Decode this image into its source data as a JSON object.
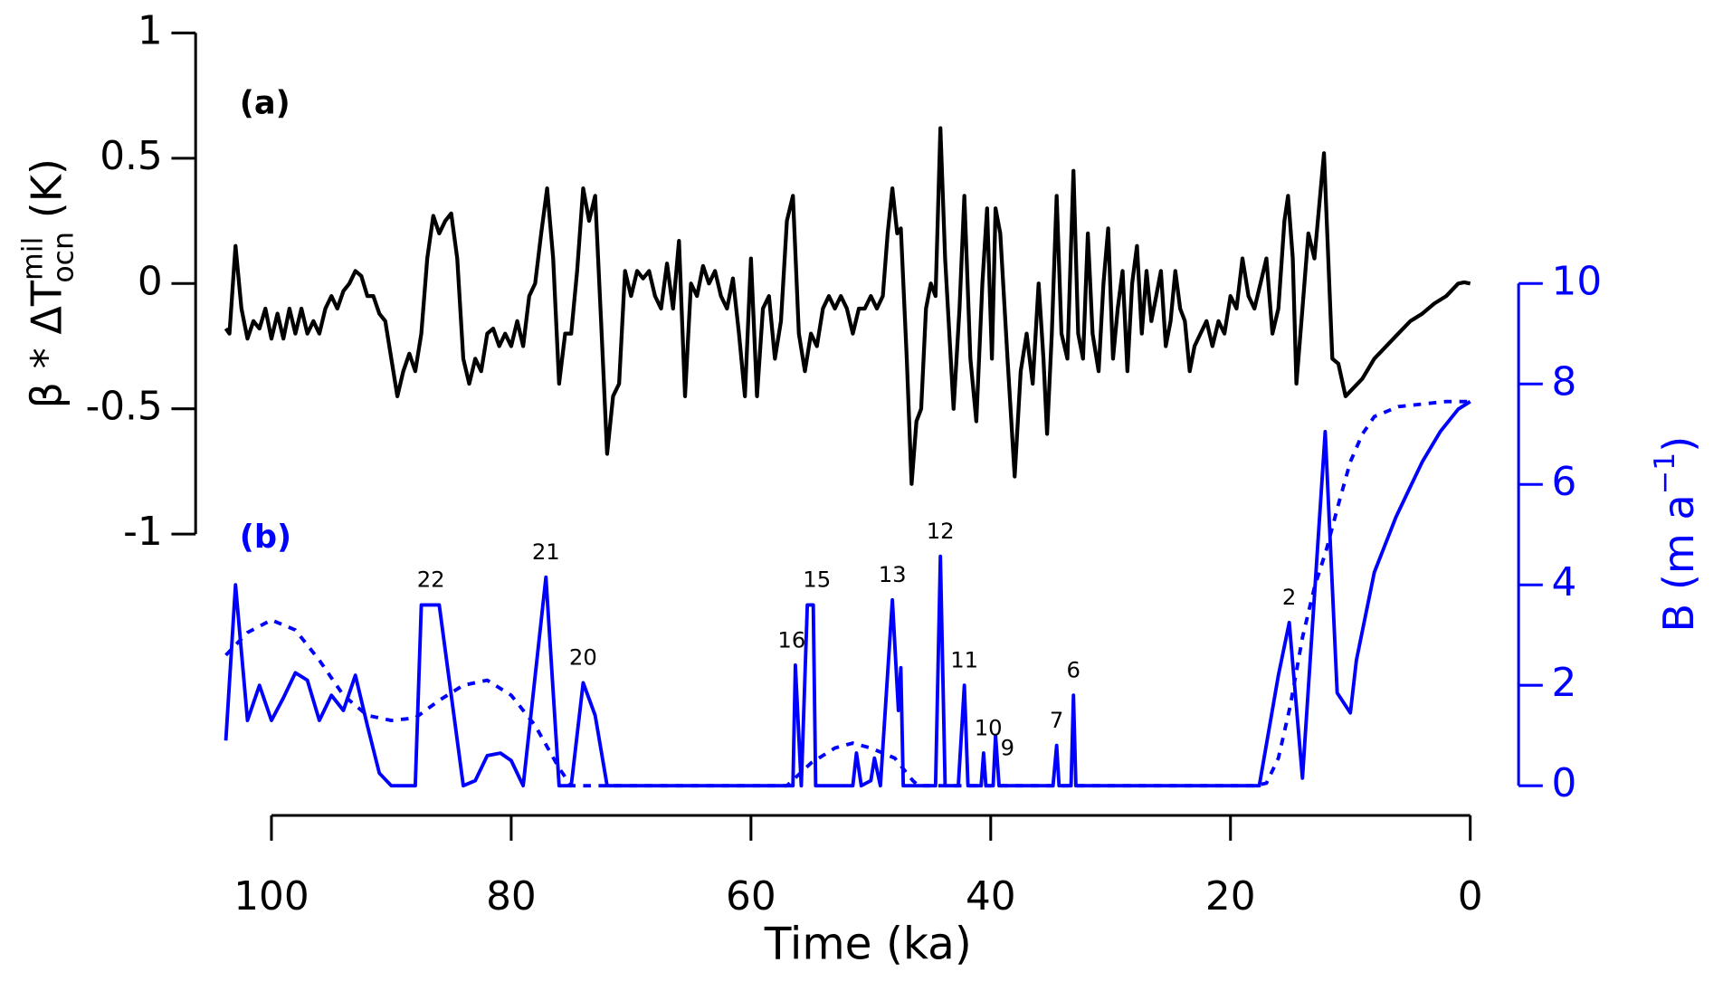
{
  "chart_data": [
    {
      "type": "line",
      "panel_label": "(a)",
      "panel_color": "#000000",
      "ylabel": {
        "text": "β * ΔT",
        "superscript": "mil",
        "subscript": "ocn",
        "unit": " (K)"
      },
      "xlim": [
        100,
        0
      ],
      "ylim": [
        -1,
        1
      ],
      "yticks": [
        -1,
        -0.5,
        0,
        0.5,
        1
      ],
      "series": [
        {
          "color": "#000000",
          "x": [
            103.8,
            103.5,
            103,
            102.5,
            102,
            101.5,
            101,
            100.5,
            100,
            99.5,
            99,
            98.5,
            98,
            97.5,
            97,
            96.5,
            96,
            95.5,
            95,
            94.5,
            94,
            93.5,
            93,
            92.5,
            92,
            91.5,
            91,
            90.5,
            90,
            89.5,
            89,
            88.5,
            88,
            87.5,
            87,
            86.5,
            86,
            85.5,
            85,
            84.5,
            84,
            83.5,
            83,
            82.5,
            82,
            81.5,
            81,
            80.5,
            80,
            79.5,
            79,
            78.5,
            78,
            77.5,
            77,
            76.5,
            76,
            75.5,
            75,
            74.5,
            74,
            73.5,
            73,
            72.5,
            72,
            71.5,
            71,
            70.5,
            70,
            69.5,
            69,
            68.5,
            68,
            67.5,
            67,
            66.5,
            66,
            65.5,
            65,
            64.5,
            64,
            63.5,
            63,
            62.5,
            62,
            61.5,
            61,
            60.5,
            60,
            59.5,
            59,
            58.5,
            58,
            57.5,
            57,
            56.5,
            56,
            55.5,
            55,
            54.5,
            54,
            53.5,
            53,
            52.5,
            52,
            51.5,
            51,
            50.5,
            50,
            49.5,
            49,
            48.6,
            48.2,
            47.8,
            47.5,
            47,
            46.6,
            46.2,
            45.8,
            45.4,
            45,
            44.6,
            44.2,
            43.8,
            43.1,
            42.6,
            42.2,
            41.7,
            41.2,
            40.7,
            40.3,
            39.9,
            39.6,
            39.2,
            38.6,
            38,
            37.5,
            37,
            36.5,
            36,
            35.6,
            35.3,
            34.9,
            34.5,
            34.1,
            33.6,
            33.1,
            32.7,
            32.3,
            31.9,
            31.5,
            31,
            30.6,
            30.2,
            29.8,
            29.4,
            29,
            28.6,
            28.2,
            27.8,
            27.4,
            27,
            26.6,
            26.2,
            25.8,
            25.4,
            25,
            24.6,
            24.2,
            23.8,
            23.4,
            23,
            22.5,
            22,
            21.5,
            21,
            20.5,
            20,
            19.5,
            19,
            18.5,
            18,
            17.5,
            17,
            16.5,
            16,
            15.5,
            15.2,
            14.8,
            14.5,
            14,
            13.5,
            13,
            12.2,
            11.5,
            11,
            10.4,
            10,
            9,
            8,
            7,
            6,
            5,
            4,
            3,
            2,
            1,
            0.5,
            0
          ],
          "values": [
            -0.18,
            -0.2,
            0.15,
            -0.1,
            -0.22,
            -0.15,
            -0.18,
            -0.1,
            -0.22,
            -0.12,
            -0.22,
            -0.1,
            -0.2,
            -0.1,
            -0.2,
            -0.15,
            -0.2,
            -0.1,
            -0.05,
            -0.1,
            -0.03,
            0,
            0.05,
            0.03,
            -0.05,
            -0.05,
            -0.12,
            -0.15,
            -0.3,
            -0.45,
            -0.35,
            -0.28,
            -0.35,
            -0.2,
            0.1,
            0.27,
            0.2,
            0.25,
            0.28,
            0.1,
            -0.3,
            -0.4,
            -0.3,
            -0.35,
            -0.2,
            -0.18,
            -0.25,
            -0.2,
            -0.25,
            -0.15,
            -0.25,
            -0.05,
            0,
            0.2,
            0.38,
            0.1,
            -0.4,
            -0.2,
            -0.2,
            0.05,
            0.38,
            0.25,
            0.35,
            -0.15,
            -0.68,
            -0.45,
            -0.4,
            0.05,
            -0.05,
            0.05,
            0.02,
            0.05,
            -0.05,
            -0.1,
            0.08,
            -0.1,
            0.17,
            -0.45,
            0,
            -0.05,
            0.07,
            0,
            0.05,
            -0.05,
            -0.1,
            0.02,
            -0.2,
            -0.45,
            0.1,
            -0.45,
            -0.1,
            -0.05,
            -0.3,
            -0.15,
            0.25,
            0.35,
            -0.2,
            -0.35,
            -0.2,
            -0.25,
            -0.1,
            -0.05,
            -0.1,
            -0.05,
            -0.1,
            -0.2,
            -0.1,
            -0.1,
            -0.05,
            -0.1,
            -0.05,
            0.2,
            0.38,
            0.2,
            0.22,
            -0.3,
            -0.8,
            -0.55,
            -0.5,
            -0.1,
            0,
            -0.05,
            0.62,
            0.1,
            -0.5,
            -0.1,
            0.35,
            -0.3,
            -0.55,
            0,
            0.3,
            -0.3,
            0.3,
            0.2,
            -0.3,
            -0.77,
            -0.35,
            -0.2,
            -0.4,
            0,
            -0.3,
            -0.6,
            -0.2,
            0.35,
            -0.2,
            -0.3,
            0.45,
            -0.2,
            -0.3,
            0.2,
            -0.2,
            -0.35,
            0,
            0.22,
            -0.3,
            -0.1,
            0.05,
            -0.35,
            0,
            0.15,
            -0.2,
            0.05,
            -0.15,
            -0.05,
            0.05,
            -0.25,
            -0.15,
            0.05,
            -0.1,
            -0.15,
            -0.35,
            -0.25,
            -0.2,
            -0.15,
            -0.25,
            -0.15,
            -0.2,
            -0.05,
            -0.1,
            0.1,
            -0.05,
            -0.1,
            0,
            0.1,
            -0.2,
            -0.1,
            0.25,
            0.35,
            0.1,
            -0.4,
            -0.1,
            0.2,
            0.1,
            0.52,
            -0.3,
            -0.32,
            -0.45,
            -0.43,
            -0.38,
            -0.3,
            -0.25,
            -0.2,
            -0.15,
            -0.12,
            -0.08,
            -0.05,
            0,
            0.005,
            0
          ]
        }
      ]
    },
    {
      "type": "line",
      "panel_label": "(b)",
      "panel_color": "#0000ff",
      "xlabel": "Time (ka)",
      "ylabel": {
        "text": "B (m a",
        "superscript": "−1",
        "unit": ")"
      },
      "xlim": [
        100,
        0
      ],
      "xticks": [
        100,
        80,
        60,
        40,
        20,
        0
      ],
      "y2lim": [
        0,
        10
      ],
      "y2ticks": [
        0,
        2,
        4,
        6,
        8,
        10
      ],
      "axis_color": "#0000ff",
      "series": [
        {
          "color": "#0000ff",
          "axis": "y2",
          "dashed": false,
          "x": [
            103.8,
            103,
            102,
            101,
            100,
            99,
            98,
            97,
            96,
            95,
            94,
            93,
            92,
            91,
            90,
            88,
            87.5,
            86,
            84,
            83,
            82,
            80.9,
            80,
            79,
            77.1,
            76,
            75,
            74,
            73,
            72,
            56.5,
            56.3,
            55.8,
            55.3,
            54.8,
            54.6,
            51.5,
            51.2,
            50.8,
            50,
            49.7,
            49.2,
            48.2,
            47.7,
            47.5,
            47.3,
            44.6,
            44.2,
            43.8,
            42.7,
            42.2,
            41.9,
            40.8,
            40.6,
            40.4,
            39.8,
            39.6,
            39.3,
            34.8,
            34.5,
            34.3,
            33.3,
            33.1,
            32.9,
            17.6,
            16,
            15.1,
            14,
            12.9,
            12.1,
            11.1,
            10,
            9.5,
            8,
            6.2,
            5.5,
            4,
            2.5,
            1,
            0
          ],
          "values": [
            0.9,
            4,
            1.3,
            2,
            1.3,
            1.75,
            2.25,
            2.1,
            1.3,
            1.8,
            1.5,
            2.2,
            1.2,
            0.25,
            0,
            0,
            3.6,
            3.6,
            0,
            0.1,
            0.6,
            0.65,
            0.5,
            0,
            4.15,
            0,
            0,
            2.05,
            1.4,
            0,
            0,
            2.4,
            0,
            3.6,
            3.6,
            0,
            0,
            0.65,
            0,
            0.1,
            0.55,
            0,
            3.7,
            1.5,
            2.35,
            0,
            0,
            4.57,
            0,
            0,
            2,
            0,
            0,
            0.65,
            0,
            0,
            1,
            0,
            0,
            0.8,
            0,
            0,
            1.8,
            0,
            0,
            2.2,
            3.25,
            0.15,
            4.15,
            7.05,
            1.85,
            1.45,
            2.5,
            4.25,
            5.35,
            5.7,
            6.45,
            7.05,
            7.5,
            7.65
          ]
        },
        {
          "color": "#0000ff",
          "axis": "y2",
          "dashed": true,
          "x": [
            103.8,
            102,
            100,
            98,
            96,
            94,
            92,
            90,
            88,
            86,
            84,
            82,
            80,
            78,
            76,
            75,
            74,
            57,
            55,
            53,
            51.5,
            50,
            48,
            46.5,
            46,
            18,
            17,
            16,
            15,
            14,
            13,
            12,
            11,
            10,
            9,
            8,
            6,
            4,
            2,
            0
          ],
          "values": [
            2.6,
            3.05,
            3.3,
            3.1,
            2.5,
            1.8,
            1.4,
            1.3,
            1.35,
            1.7,
            2,
            2.1,
            1.8,
            1.2,
            0.35,
            0,
            0,
            0,
            0.45,
            0.75,
            0.85,
            0.75,
            0.55,
            0.1,
            0,
            0,
            0.05,
            0.55,
            1.6,
            2.95,
            3.95,
            4.7,
            5.6,
            6.45,
            7,
            7.35,
            7.55,
            7.6,
            7.65,
            7.65
          ]
        }
      ],
      "annotations": [
        {
          "text": "22",
          "x": 86.7,
          "y": 3.6
        },
        {
          "text": "21",
          "x": 77.1,
          "y": 4.15
        },
        {
          "text": "20",
          "x": 74,
          "y": 2.05
        },
        {
          "text": "16",
          "x": 56.6,
          "y": 2.4
        },
        {
          "text": "15",
          "x": 54.5,
          "y": 3.6
        },
        {
          "text": "13",
          "x": 48.2,
          "y": 3.7
        },
        {
          "text": "12",
          "x": 44.2,
          "y": 4.57
        },
        {
          "text": "11",
          "x": 42.2,
          "y": 2
        },
        {
          "text": "10",
          "x": 40.2,
          "y": 0.65
        },
        {
          "text": "9",
          "x": 38.6,
          "y": 0.25
        },
        {
          "text": "7",
          "x": 34.5,
          "y": 0.8
        },
        {
          "text": "6",
          "x": 33.1,
          "y": 1.8
        },
        {
          "text": "2",
          "x": 15.1,
          "y": 3.25
        }
      ]
    }
  ]
}
